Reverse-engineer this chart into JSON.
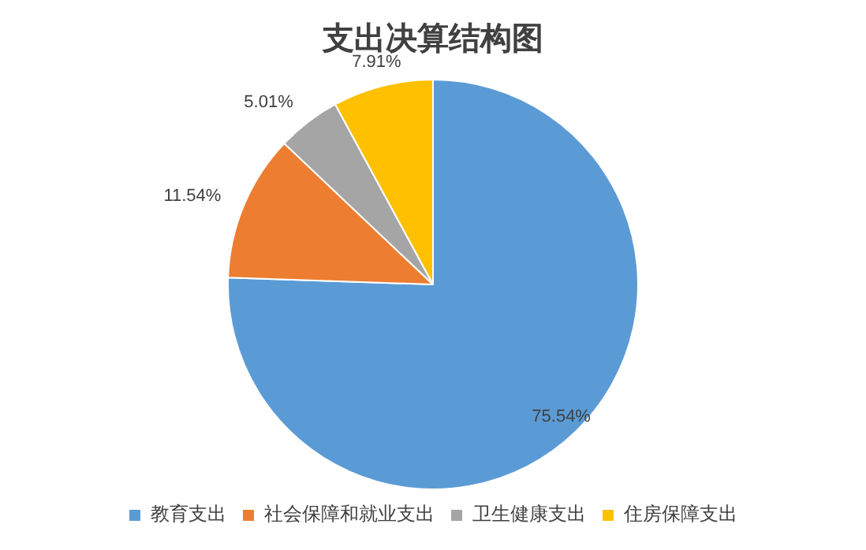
{
  "chart_data": {
    "type": "pie",
    "title": "支出决算结构图",
    "categories": [
      "教育支出",
      "社会保障和就业支出",
      "卫生健康支出",
      "住房保障支出"
    ],
    "values": [
      75.54,
      11.54,
      5.01,
      7.91
    ],
    "colors": [
      "#5b9bd5",
      "#ed7d31",
      "#a5a5a5",
      "#ffc000"
    ],
    "value_labels": [
      "75.54%",
      "11.54%",
      "5.01%",
      "7.91%"
    ],
    "legend": "bottom"
  }
}
